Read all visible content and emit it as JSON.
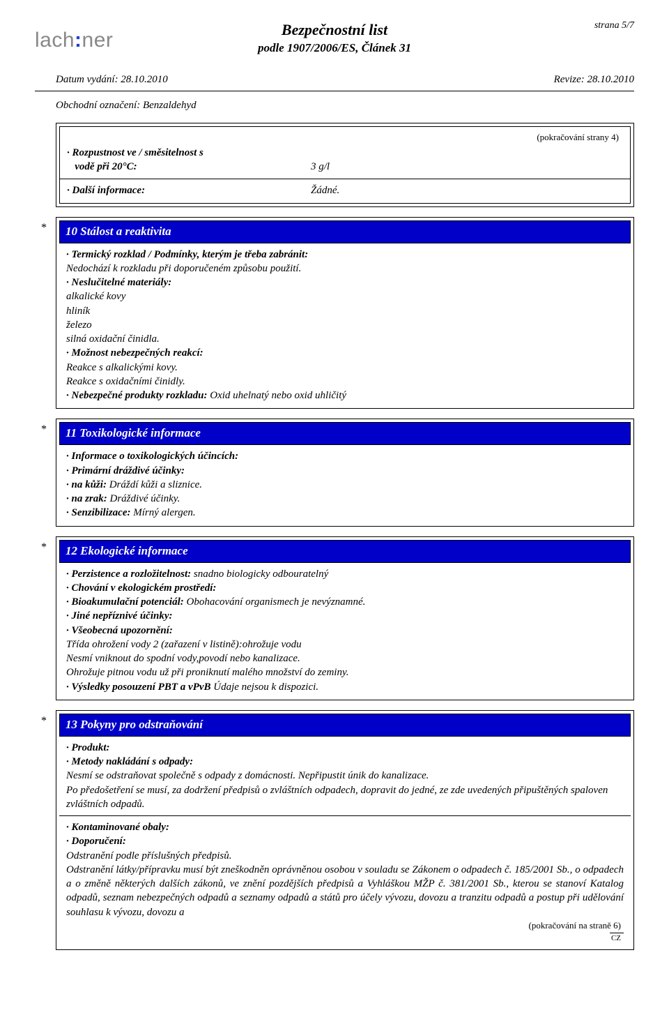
{
  "page": {
    "number_label": "strana 5/7",
    "logo_pre": "lach",
    "logo_post": "ner",
    "title": "Bezpečnostní  list",
    "subtitle": "podle 1907/2006/ES, Článek 31",
    "issue_date_label": "Datum vydání: 28.10.2010",
    "revision_label": "Revize: 28.10.2010",
    "trade_name_label": "Obchodní označení: Benzaldehyd",
    "cz": "CZ"
  },
  "cont_box": {
    "cont_from": "(pokračování strany 4)",
    "row1_label": "· Rozpustnost ve / směsitelnost s",
    "row1b_label": "   vodě při 20°C:",
    "row1b_val": "3 g/l",
    "row2_label": "· Další informace:",
    "row2_val": "Žádné."
  },
  "sec10": {
    "header": "10 Stálost a reaktivita",
    "l1": "· Termický rozklad / Podmínky, kterým je třeba zabránit:",
    "l2": "Nedochází k rozkladu při doporučeném způsobu použití.",
    "l3": "· Neslučitelné materiály:",
    "l4": "alkalické kovy",
    "l5": "hliník",
    "l6": "železo",
    "l7": "silná oxidační činidla.",
    "l8": "· Možnost nebezpečných reakcí:",
    "l9": "Reakce s alkalickými kovy.",
    "l10": "Reakce s oxidačními činidly.",
    "l11_lbl": "· Nebezpečné produkty rozkladu: ",
    "l11_val": "Oxid uhelnatý nebo oxid uhličitý"
  },
  "sec11": {
    "header": "11 Toxikologické informace",
    "l1": "· Informace o toxikologických účincích:",
    "l2": "· Primární dráždivé účinky:",
    "l3_lbl": "· na kůži: ",
    "l3_val": "Dráždí kůži a sliznice.",
    "l4_lbl": "· na zrak: ",
    "l4_val": "Dráždivé účinky.",
    "l5_lbl": "· Senzibilizace: ",
    "l5_val": "Mírný alergen."
  },
  "sec12": {
    "header": "12 Ekologické informace",
    "l1_lbl": "· Perzistence a rozložitelnost: ",
    "l1_val": "snadno biologicky odbouratelný",
    "l2": "· Chování v ekologickém prostředí:",
    "l3_lbl": "· Bioakumulační potenciál: ",
    "l3_val": "Obohacování organismech je nevýznamné.",
    "l4": "· Jiné nepříznivé účinky:",
    "l5": "· Všeobecná upozornění:",
    "l6": "Třída ohrožení vody 2 (zařazení v listině):ohrožuje vodu",
    "l7": "Nesmí vniknout do spodní vody,povodí nebo kanalizace.",
    "l8": "Ohrožuje pitnou vodu už při proniknutí malého množství do zeminy.",
    "l9_lbl": "· Výsledky posouzení PBT a vPvB ",
    "l9_val": "Údaje nejsou k dispozici."
  },
  "sec13": {
    "header": "13 Pokyny pro odstraňování",
    "l1": "· Produkt:",
    "l2": "· Metody nakládání s odpady:",
    "l3": "Nesmí se odstraňovat společně s odpady z domácnosti. Nepřipustit únik do kanalizace.",
    "l4": "Po předošetření se musí, za dodržení předpisů o zvláštních odpadech, dopravit do jedné, ze zde uvedených připuštěných spaloven zvláštních odpadů.",
    "l5": "· Kontaminované obaly:",
    "l6": "· Doporučení:",
    "l7": "Odstranění podle příslušných předpisů.",
    "l8": "Odstranění látky/přípravku musí být zneškodněn oprávněnou osobou v souladu se Zákonem o odpadech č. 185/2001 Sb., o odpadech a o změně některých dalších zákonů, ve znění pozdějších předpisů a Vyhláškou MŽP č. 381/2001 Sb., kterou se stanoví Katalog odpadů, seznam nebezpečných odpadů a seznamy odpadů a států pro účely vývozu, dovozu a tranzitu odpadů a postup při udělování souhlasu k vývozu, dovozu a",
    "cont_to": "(pokračování na straně 6)"
  }
}
